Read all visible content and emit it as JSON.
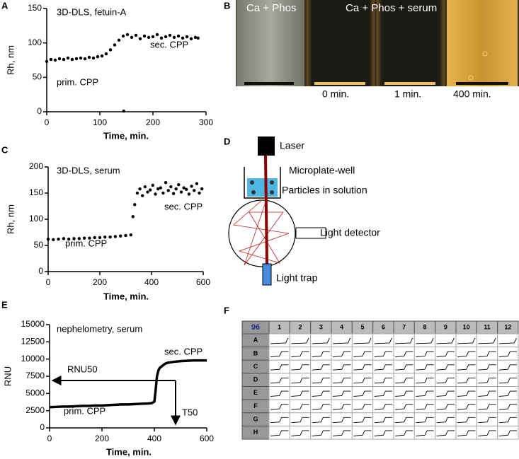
{
  "panel_labels": [
    "A",
    "B",
    "C",
    "D",
    "E",
    "F"
  ],
  "chart_data": [
    {
      "type": "scatter",
      "color": "#000000",
      "annotations": [
        "3D-DLS, fetuin-A",
        "prim. CPP",
        "sec. CPP"
      ],
      "xlabel": "Time, min.",
      "ylabel": "Rh, nm",
      "xlim": [
        0,
        300
      ],
      "xticks": [
        0,
        100,
        200,
        300
      ],
      "ylim": [
        0,
        150
      ],
      "yticks": [
        0,
        50,
        100,
        150
      ],
      "x": [
        0,
        8,
        16,
        24,
        32,
        40,
        48,
        56,
        64,
        72,
        80,
        88,
        96,
        104,
        112,
        120,
        128,
        136,
        144,
        152,
        160,
        168,
        176,
        184,
        192,
        200,
        208,
        216,
        224,
        232,
        240,
        248,
        256,
        264,
        272,
        280,
        285,
        145
      ],
      "values": [
        73,
        76,
        75,
        77,
        76,
        78,
        76,
        77,
        78,
        77,
        79,
        78,
        80,
        81,
        84,
        90,
        97,
        104,
        110,
        112,
        108,
        111,
        106,
        110,
        108,
        109,
        112,
        107,
        109,
        111,
        108,
        110,
        107,
        109,
        106,
        108,
        107,
        1
      ]
    },
    {
      "type": "scatter",
      "color": "#000000",
      "annotations": [
        "3D-DLS, serum",
        "prim. CPP",
        "sec. CPP"
      ],
      "xlabel": "Time, min.",
      "ylabel": "Rh, nm",
      "xlim": [
        0,
        600
      ],
      "xticks": [
        0,
        200,
        400,
        600
      ],
      "ylim": [
        0,
        200
      ],
      "yticks": [
        0,
        50,
        100,
        150,
        200
      ],
      "x": [
        0,
        20,
        40,
        60,
        80,
        100,
        120,
        140,
        160,
        180,
        200,
        220,
        240,
        260,
        280,
        300,
        320,
        328,
        335,
        345,
        355,
        365,
        375,
        385,
        395,
        405,
        415,
        425,
        435,
        445,
        455,
        465,
        475,
        485,
        495,
        505,
        515,
        525,
        535,
        545,
        555,
        565,
        575,
        585,
        595
      ],
      "values": [
        62,
        61,
        62,
        63,
        62,
        63,
        63,
        64,
        64,
        65,
        65,
        66,
        66,
        67,
        68,
        69,
        70,
        105,
        128,
        150,
        158,
        145,
        162,
        152,
        156,
        165,
        148,
        158,
        160,
        150,
        170,
        155,
        162,
        149,
        158,
        166,
        152,
        160,
        157,
        148,
        163,
        155,
        168,
        150,
        158
      ]
    },
    {
      "type": "line",
      "color": "#000000",
      "annotations": [
        "nephelometry, serum",
        "RNU50",
        "prim. CPP",
        "sec. CPP",
        "T50"
      ],
      "xlabel": "Time, min.",
      "ylabel": "RNU",
      "xlim": [
        0,
        600
      ],
      "xticks": [
        0,
        200,
        400,
        600
      ],
      "ylim": [
        0,
        15000
      ],
      "yticks": [
        0,
        2500,
        5000,
        7500,
        10000,
        12500,
        15000
      ],
      "x": [
        0,
        25,
        50,
        75,
        100,
        125,
        150,
        175,
        200,
        225,
        250,
        275,
        300,
        325,
        350,
        375,
        390,
        400,
        405,
        410,
        415,
        420,
        430,
        440,
        450,
        475,
        500,
        525,
        550,
        575,
        600
      ],
      "values": [
        3000,
        3050,
        3100,
        3100,
        3150,
        3200,
        3200,
        3250,
        3250,
        3300,
        3350,
        3400,
        3400,
        3450,
        3500,
        3550,
        3600,
        3800,
        5500,
        7500,
        8300,
        8700,
        9000,
        9300,
        9450,
        9600,
        9700,
        9750,
        9800,
        9800,
        9800
      ]
    }
  ],
  "panel_b": {
    "headers": [
      "Ca + Phos",
      "Ca + Phos + serum"
    ],
    "times": [
      "0 min.",
      "1 min.",
      "400 min."
    ]
  },
  "panel_d": {
    "labels": [
      "Laser",
      "Microplate-well",
      "Particles in solution",
      "Light detector",
      "Light trap"
    ]
  },
  "panel_f": {
    "corner": "96",
    "columns": [
      "1",
      "2",
      "3",
      "4",
      "5",
      "6",
      "7",
      "8",
      "9",
      "10",
      "11",
      "12"
    ],
    "rows": [
      "A",
      "B",
      "C",
      "D",
      "E",
      "F",
      "G",
      "H"
    ]
  }
}
